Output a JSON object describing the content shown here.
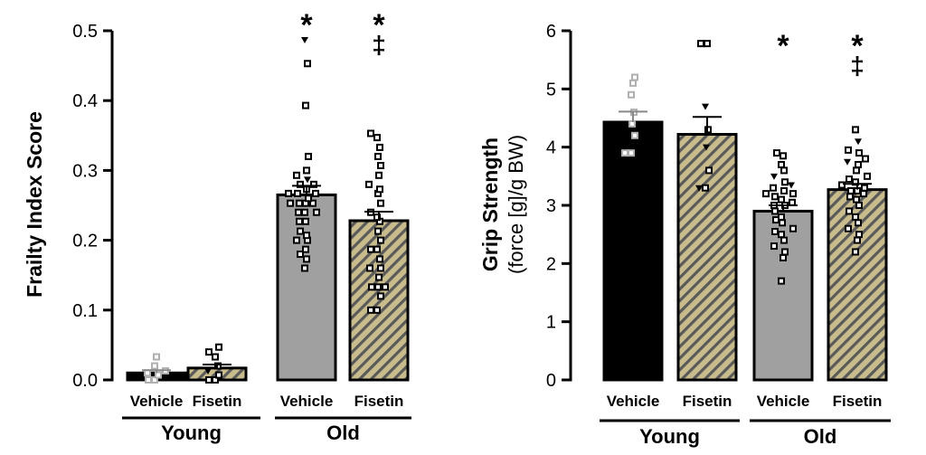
{
  "colors": {
    "black": "#000000",
    "gray": "#a0a0a0",
    "light_gray": "#b0b0b0",
    "hatch_bg": "#c9bc8c",
    "hatch_stripe": "#5a5a5a"
  },
  "chart_data": [
    {
      "type": "bar",
      "id": "frailty",
      "ylabel": "Frailty Index Score",
      "ylabel_sub": "",
      "ylim": [
        0,
        0.5
      ],
      "yticks": [
        "0.0",
        "0.1",
        "0.2",
        "0.3",
        "0.4",
        "0.5"
      ],
      "ytick_values": [
        0,
        0.1,
        0.2,
        0.3,
        0.4,
        0.5
      ],
      "categories": [
        "Vehicle",
        "Fisetin",
        "Vehicle",
        "Fisetin"
      ],
      "groups": [
        {
          "label": "Young",
          "members": [
            0,
            1
          ]
        },
        {
          "label": "Old",
          "members": [
            2,
            3
          ]
        }
      ],
      "values": [
        0.01,
        0.017,
        0.265,
        0.228
      ],
      "sem": [
        0.004,
        0.005,
        0.013,
        0.013
      ],
      "fills": [
        "black",
        "hatch",
        "gray",
        "hatch"
      ],
      "annotations": [
        {
          "bar": 2,
          "symbols": [
            "*"
          ]
        },
        {
          "bar": 3,
          "symbols": [
            "*",
            "‡"
          ]
        }
      ],
      "points": [
        [
          [
            0.0,
            "sq"
          ],
          [
            0.0,
            "sq"
          ],
          [
            0.007,
            "sq"
          ],
          [
            0.01,
            "sq"
          ],
          [
            0.013,
            "sq"
          ],
          [
            0.02,
            "sq"
          ],
          [
            0.033,
            "sq"
          ]
        ],
        [
          [
            0.0,
            "sq"
          ],
          [
            0.0,
            "sq"
          ],
          [
            0.007,
            "sq"
          ],
          [
            0.013,
            "tri"
          ],
          [
            0.02,
            "sq"
          ],
          [
            0.033,
            "sq"
          ],
          [
            0.04,
            "sq"
          ],
          [
            0.047,
            "sq"
          ]
        ],
        [
          [
            0.16,
            "sq"
          ],
          [
            0.173,
            "sq"
          ],
          [
            0.18,
            "sq"
          ],
          [
            0.187,
            "sq"
          ],
          [
            0.2,
            "sq"
          ],
          [
            0.2,
            "sq"
          ],
          [
            0.207,
            "sq"
          ],
          [
            0.213,
            "sq"
          ],
          [
            0.227,
            "sq"
          ],
          [
            0.227,
            "sq"
          ],
          [
            0.24,
            "sq"
          ],
          [
            0.24,
            "sq"
          ],
          [
            0.24,
            "sq"
          ],
          [
            0.253,
            "sq"
          ],
          [
            0.253,
            "sq"
          ],
          [
            0.253,
            "sq"
          ],
          [
            0.253,
            "sq"
          ],
          [
            0.26,
            "sq"
          ],
          [
            0.267,
            "sq"
          ],
          [
            0.267,
            "sq"
          ],
          [
            0.267,
            "sq"
          ],
          [
            0.273,
            "sq"
          ],
          [
            0.28,
            "sq"
          ],
          [
            0.28,
            "sq"
          ],
          [
            0.287,
            "tri"
          ],
          [
            0.293,
            "sq"
          ],
          [
            0.3,
            "sq"
          ],
          [
            0.32,
            "sq"
          ],
          [
            0.393,
            "sq"
          ],
          [
            0.453,
            "sq"
          ],
          [
            0.487,
            "tri"
          ]
        ],
        [
          [
            0.1,
            "sq"
          ],
          [
            0.1,
            "sq"
          ],
          [
            0.12,
            "sq"
          ],
          [
            0.133,
            "sq"
          ],
          [
            0.133,
            "sq"
          ],
          [
            0.133,
            "sq"
          ],
          [
            0.147,
            "sq"
          ],
          [
            0.16,
            "sq"
          ],
          [
            0.16,
            "sq"
          ],
          [
            0.173,
            "sq"
          ],
          [
            0.187,
            "sq"
          ],
          [
            0.187,
            "sq"
          ],
          [
            0.2,
            "sq"
          ],
          [
            0.213,
            "sq"
          ],
          [
            0.227,
            "sq"
          ],
          [
            0.233,
            "sq"
          ],
          [
            0.24,
            "sq"
          ],
          [
            0.253,
            "sq"
          ],
          [
            0.267,
            "sq"
          ],
          [
            0.273,
            "sq"
          ],
          [
            0.28,
            "sq"
          ],
          [
            0.293,
            "sq"
          ],
          [
            0.307,
            "sq"
          ],
          [
            0.32,
            "sq"
          ],
          [
            0.333,
            "sq"
          ],
          [
            0.347,
            "sq"
          ],
          [
            0.353,
            "sq"
          ]
        ]
      ]
    },
    {
      "type": "bar",
      "id": "grip",
      "ylabel": "Grip Strength",
      "ylabel_sub": "(force [g]/g BW)",
      "ylim": [
        0,
        6
      ],
      "yticks": [
        "0",
        "1",
        "2",
        "3",
        "4",
        "5",
        "6"
      ],
      "ytick_values": [
        0,
        1,
        2,
        3,
        4,
        5,
        6
      ],
      "categories": [
        "Vehicle",
        "Fisetin",
        "Vehicle",
        "Fisetin"
      ],
      "groups": [
        {
          "label": "Young",
          "members": [
            0,
            1
          ]
        },
        {
          "label": "Old",
          "members": [
            2,
            3
          ]
        }
      ],
      "values": [
        4.43,
        4.22,
        2.9,
        3.27
      ],
      "sem": [
        0.18,
        0.3,
        0.1,
        0.1
      ],
      "fills": [
        "black",
        "hatch",
        "gray",
        "hatch"
      ],
      "annotations": [
        {
          "bar": 2,
          "symbols": [
            "*"
          ]
        },
        {
          "bar": 3,
          "symbols": [
            "*",
            "‡"
          ]
        }
      ],
      "points": [
        [
          [
            3.9,
            "sq"
          ],
          [
            3.9,
            "sq"
          ],
          [
            4.2,
            "sq"
          ],
          [
            4.4,
            "sq"
          ],
          [
            4.6,
            "sq"
          ],
          [
            4.9,
            "sq"
          ],
          [
            5.1,
            "sq"
          ],
          [
            5.2,
            "sq"
          ]
        ],
        [
          [
            3.3,
            "sq"
          ],
          [
            3.3,
            "tri"
          ],
          [
            3.6,
            "sq"
          ],
          [
            4.0,
            "tri"
          ],
          [
            4.3,
            "sq"
          ],
          [
            4.7,
            "tri"
          ],
          [
            5.78,
            "sq"
          ],
          [
            5.78,
            "sq"
          ]
        ],
        [
          [
            1.7,
            "sq"
          ],
          [
            2.1,
            "sq"
          ],
          [
            2.2,
            "sq"
          ],
          [
            2.3,
            "sq"
          ],
          [
            2.4,
            "sq"
          ],
          [
            2.5,
            "sq"
          ],
          [
            2.55,
            "sq"
          ],
          [
            2.6,
            "sq"
          ],
          [
            2.7,
            "sq"
          ],
          [
            2.75,
            "sq"
          ],
          [
            2.8,
            "sq"
          ],
          [
            2.9,
            "sq"
          ],
          [
            3.0,
            "sq"
          ],
          [
            3.0,
            "sq"
          ],
          [
            3.05,
            "sq"
          ],
          [
            3.1,
            "sq"
          ],
          [
            3.15,
            "sq"
          ],
          [
            3.2,
            "sq"
          ],
          [
            3.2,
            "sq"
          ],
          [
            3.25,
            "sq"
          ],
          [
            3.3,
            "sq"
          ],
          [
            3.35,
            "tri"
          ],
          [
            3.4,
            "sq"
          ],
          [
            3.5,
            "tri"
          ],
          [
            3.6,
            "sq"
          ],
          [
            3.7,
            "sq"
          ],
          [
            3.85,
            "sq"
          ],
          [
            3.9,
            "sq"
          ]
        ],
        [
          [
            2.2,
            "sq"
          ],
          [
            2.4,
            "sq"
          ],
          [
            2.5,
            "sq"
          ],
          [
            2.6,
            "sq"
          ],
          [
            2.7,
            "sq"
          ],
          [
            2.8,
            "sq"
          ],
          [
            2.9,
            "sq"
          ],
          [
            3.0,
            "sq"
          ],
          [
            3.1,
            "sq"
          ],
          [
            3.15,
            "sq"
          ],
          [
            3.2,
            "sq"
          ],
          [
            3.25,
            "sq"
          ],
          [
            3.25,
            "sq"
          ],
          [
            3.3,
            "sq"
          ],
          [
            3.35,
            "sq"
          ],
          [
            3.4,
            "sq"
          ],
          [
            3.45,
            "sq"
          ],
          [
            3.5,
            "sq"
          ],
          [
            3.6,
            "sq"
          ],
          [
            3.7,
            "sq"
          ],
          [
            3.75,
            "tri"
          ],
          [
            3.8,
            "sq"
          ],
          [
            3.9,
            "sq"
          ],
          [
            3.95,
            "sq"
          ],
          [
            4.1,
            "tri"
          ],
          [
            4.3,
            "sq"
          ]
        ]
      ]
    }
  ]
}
